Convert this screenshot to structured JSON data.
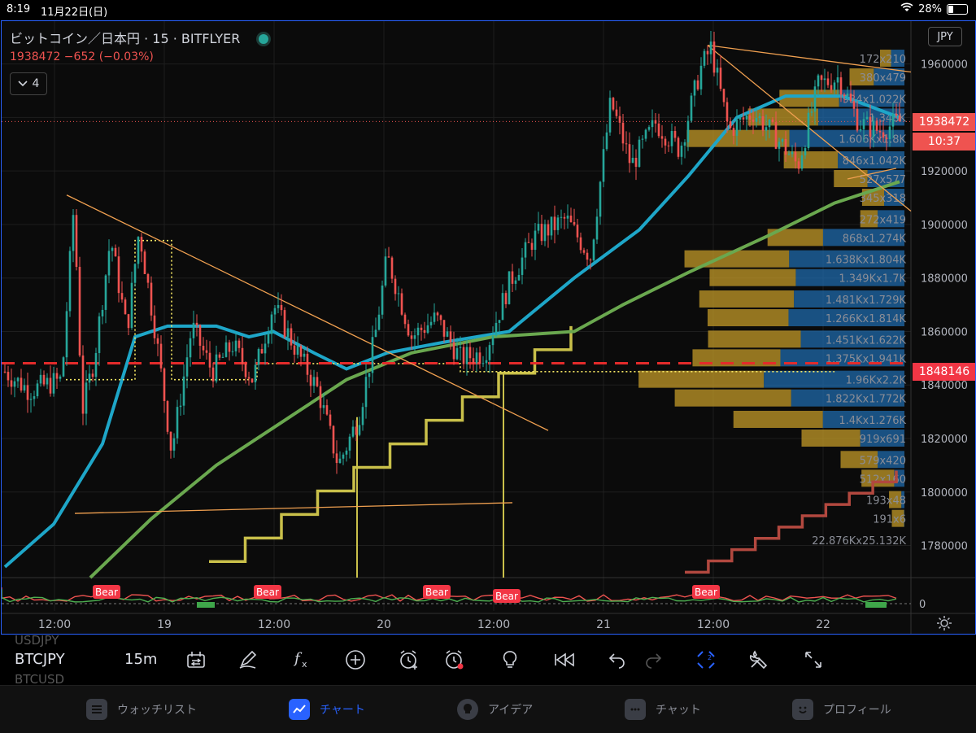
{
  "status_bar": {
    "time": "8:19",
    "date": "11月22日(日)",
    "battery": "28%"
  },
  "header": {
    "symbol_title": "ビットコイン／日本円 · 15 · BITFLYER",
    "price_change": "1938472 −652 (−0.03%)",
    "indicator_toggle": "4",
    "currency": "JPY"
  },
  "price_tags": {
    "last_price": "1938472",
    "countdown": "10:37",
    "level_price": "1848146"
  },
  "colors": {
    "up": "#26a69a",
    "down": "#ef5350",
    "blue_ma": "#1ea6c8",
    "green_ma": "#6aa84f",
    "yellow_step": "#c9c04a",
    "red_step": "#b2483f",
    "vp_gold": "#c39a28",
    "vp_blue": "#1f6fb5",
    "accent": "#2962ff"
  },
  "chart_data": {
    "type": "candlestick",
    "symbol": "BTCJPY",
    "interval": "15",
    "ylim": [
      1768000,
      1976000
    ],
    "y_ticks": [
      "1960000",
      "1940000",
      "1920000",
      "1900000",
      "1880000",
      "1860000",
      "1840000",
      "1820000",
      "1800000",
      "1780000"
    ],
    "x_ticks": [
      "12:00",
      "19",
      "12:00",
      "20",
      "12:00",
      "21",
      "12:00",
      "22"
    ],
    "price_path": [
      {
        "t": 0,
        "p": 1845000
      },
      {
        "t": 30,
        "p": 1838000
      },
      {
        "t": 70,
        "p": 1842000
      },
      {
        "t": 85,
        "p": 1908000
      },
      {
        "t": 95,
        "p": 1830000
      },
      {
        "t": 110,
        "p": 1850000
      },
      {
        "t": 130,
        "p": 1895000
      },
      {
        "t": 150,
        "p": 1860000
      },
      {
        "t": 165,
        "p": 1898000
      },
      {
        "t": 185,
        "p": 1860000
      },
      {
        "t": 205,
        "p": 1815000
      },
      {
        "t": 230,
        "p": 1862000
      },
      {
        "t": 255,
        "p": 1845000
      },
      {
        "t": 280,
        "p": 1855000
      },
      {
        "t": 305,
        "p": 1842000
      },
      {
        "t": 330,
        "p": 1870000
      },
      {
        "t": 360,
        "p": 1852000
      },
      {
        "t": 385,
        "p": 1838000
      },
      {
        "t": 410,
        "p": 1810000
      },
      {
        "t": 435,
        "p": 1828000
      },
      {
        "t": 455,
        "p": 1858000
      },
      {
        "t": 470,
        "p": 1888000
      },
      {
        "t": 500,
        "p": 1858000
      },
      {
        "t": 530,
        "p": 1865000
      },
      {
        "t": 560,
        "p": 1850000
      },
      {
        "t": 590,
        "p": 1852000
      },
      {
        "t": 620,
        "p": 1878000
      },
      {
        "t": 650,
        "p": 1895000
      },
      {
        "t": 690,
        "p": 1902000
      },
      {
        "t": 720,
        "p": 1888000
      },
      {
        "t": 745,
        "p": 1946000
      },
      {
        "t": 770,
        "p": 1922000
      },
      {
        "t": 800,
        "p": 1938000
      },
      {
        "t": 830,
        "p": 1928000
      },
      {
        "t": 855,
        "p": 1958000
      },
      {
        "t": 868,
        "p": 1966000
      },
      {
        "t": 890,
        "p": 1935000
      },
      {
        "t": 920,
        "p": 1942000
      },
      {
        "t": 950,
        "p": 1932000
      },
      {
        "t": 975,
        "p": 1922000
      },
      {
        "t": 1000,
        "p": 1952000
      },
      {
        "t": 1025,
        "p": 1955000
      },
      {
        "t": 1050,
        "p": 1938000
      },
      {
        "t": 1075,
        "p": 1935000
      },
      {
        "t": 1100,
        "p": 1938472
      }
    ],
    "volume_profile": [
      {
        "price": 1962000,
        "label": "172x210",
        "buy": 172,
        "sell": 210
      },
      {
        "price": 1955000,
        "label": "380x479",
        "buy": 380,
        "sell": 479
      },
      {
        "price": 1947000,
        "label": "934x1.022K",
        "buy": 934,
        "sell": 1022
      },
      {
        "price": 1940000,
        "label": "1.348K",
        "buy": 1100,
        "sell": 1348
      },
      {
        "price": 1932000,
        "label": "1.606Kx1.8K",
        "buy": 1606,
        "sell": 1800
      },
      {
        "price": 1924000,
        "label": "846x1.042K",
        "buy": 846,
        "sell": 1042
      },
      {
        "price": 1917000,
        "label": "527x577",
        "buy": 527,
        "sell": 577
      },
      {
        "price": 1910000,
        "label": "345x318",
        "buy": 345,
        "sell": 318
      },
      {
        "price": 1902000,
        "label": "272x419",
        "buy": 272,
        "sell": 419
      },
      {
        "price": 1895000,
        "label": "868x1.274K",
        "buy": 868,
        "sell": 1274
      },
      {
        "price": 1887000,
        "label": "1.638Kx1.804K",
        "buy": 1638,
        "sell": 1804
      },
      {
        "price": 1880000,
        "label": "1.349Kx1.7K",
        "buy": 1349,
        "sell": 1700
      },
      {
        "price": 1872000,
        "label": "1.481Kx1.729K",
        "buy": 1481,
        "sell": 1729
      },
      {
        "price": 1865000,
        "label": "1.266Kx1.814K",
        "buy": 1266,
        "sell": 1814
      },
      {
        "price": 1857000,
        "label": "1.451Kx1.622K",
        "buy": 1451,
        "sell": 1622
      },
      {
        "price": 1850000,
        "label": "1.375Kx1.941K",
        "buy": 1375,
        "sell": 1941
      },
      {
        "price": 1842000,
        "label": "1.96Kx2.2K",
        "buy": 1960,
        "sell": 2200
      },
      {
        "price": 1835000,
        "label": "1.822Kx1.772K",
        "buy": 1822,
        "sell": 1772
      },
      {
        "price": 1827000,
        "label": "1.4Kx1.276K",
        "buy": 1400,
        "sell": 1276
      },
      {
        "price": 1820000,
        "label": "919x691",
        "buy": 919,
        "sell": 691
      },
      {
        "price": 1812000,
        "label": "579x420",
        "buy": 579,
        "sell": 420
      },
      {
        "price": 1805000,
        "label": "512x160",
        "buy": 512,
        "sell": 160
      },
      {
        "price": 1797000,
        "label": "193x48",
        "buy": 193,
        "sell": 48
      },
      {
        "price": 1790000,
        "label": "191x6",
        "buy": 191,
        "sell": 6
      },
      {
        "price": 1782000,
        "label": "22.876Kx25.132K",
        "buy": 0,
        "sell": 0
      }
    ],
    "oscillator": {
      "zero_label": "0",
      "bear_labels": [
        "Bear",
        "Bear",
        "Bear",
        "Bear",
        "Bear"
      ]
    }
  },
  "toolbar": {
    "symbol": "BTCJPY",
    "symbol_prev": "USDJPY",
    "symbol_next": "BTCUSD",
    "interval": "15m",
    "icons": [
      "compare-icon",
      "draw-icon",
      "indicators-icon",
      "add-icon",
      "alert-add-icon",
      "alert-icon",
      "ideas-icon",
      "replay-icon",
      "undo-icon",
      "redo-icon",
      "crosshair-icon",
      "tools-icon",
      "fullscreen-icon"
    ]
  },
  "tabs": [
    {
      "label": "ウォッチリスト",
      "icon": "list-icon"
    },
    {
      "label": "チャート",
      "icon": "chart-icon"
    },
    {
      "label": "アイデア",
      "icon": "lightbulb-icon"
    },
    {
      "label": "チャット",
      "icon": "chat-icon"
    },
    {
      "label": "プロフィール",
      "icon": "profile-icon"
    }
  ]
}
